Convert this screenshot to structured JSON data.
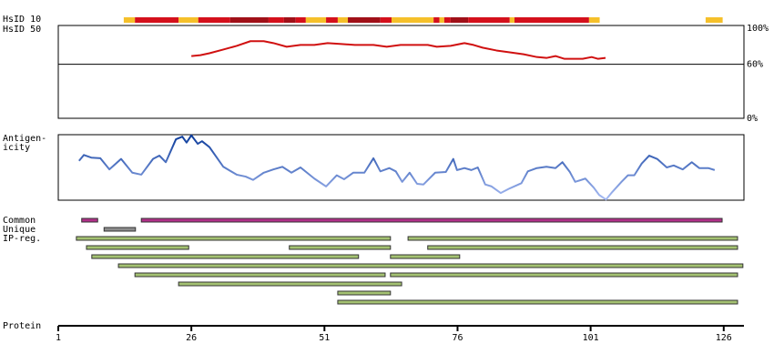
{
  "chart_data": {
    "type": "feature-map",
    "x_label": "Protein",
    "xlim": [
      1,
      129.8
    ],
    "xticks": [
      1,
      26,
      51,
      76,
      101,
      126
    ],
    "hsid10": {
      "label": "HsID 10",
      "segments": [
        {
          "start": 13.3,
          "end": 15.4,
          "color": "#f5c02a"
        },
        {
          "start": 15.4,
          "end": 23.6,
          "color": "#d4101c"
        },
        {
          "start": 23.6,
          "end": 27.3,
          "color": "#f5c02a"
        },
        {
          "start": 27.3,
          "end": 33.3,
          "color": "#d4101c"
        },
        {
          "start": 33.3,
          "end": 40.5,
          "color": "#a01018"
        },
        {
          "start": 40.5,
          "end": 43.4,
          "color": "#d4101c"
        },
        {
          "start": 43.4,
          "end": 45.6,
          "color": "#a01018"
        },
        {
          "start": 45.6,
          "end": 47.5,
          "color": "#d4101c"
        },
        {
          "start": 47.5,
          "end": 51.3,
          "color": "#f5c02a"
        },
        {
          "start": 51.3,
          "end": 53.5,
          "color": "#d4101c"
        },
        {
          "start": 53.5,
          "end": 55.4,
          "color": "#f5c02a"
        },
        {
          "start": 55.4,
          "end": 61.5,
          "color": "#a01018"
        },
        {
          "start": 61.5,
          "end": 63.6,
          "color": "#d4101c"
        },
        {
          "start": 63.6,
          "end": 71.5,
          "color": "#f5c02a"
        },
        {
          "start": 71.5,
          "end": 72.6,
          "color": "#d4101c"
        },
        {
          "start": 72.6,
          "end": 73.5,
          "color": "#f5c02a"
        },
        {
          "start": 73.5,
          "end": 74.7,
          "color": "#d4101c"
        },
        {
          "start": 74.7,
          "end": 78.0,
          "color": "#a01018"
        },
        {
          "start": 78.0,
          "end": 85.8,
          "color": "#d4101c"
        },
        {
          "start": 85.8,
          "end": 86.7,
          "color": "#f5c02a"
        },
        {
          "start": 86.7,
          "end": 100.7,
          "color": "#d4101c"
        },
        {
          "start": 100.7,
          "end": 102.7,
          "color": "#f5c02a"
        },
        {
          "start": 122.6,
          "end": 125.8,
          "color": "#f5c02a"
        }
      ]
    },
    "hsid50": {
      "label": "HsID 50",
      "type": "line",
      "color": "#d01010",
      "grid": true,
      "ylim": [
        0,
        100
      ],
      "yticks": [
        {
          "value": 0,
          "label": "0%"
        },
        {
          "value": 60,
          "label": "60%"
        },
        {
          "value": 100,
          "label": "100%"
        }
      ],
      "x": [
        26.0,
        27.7,
        29.4,
        32.0,
        34.5,
        37.1,
        39.6,
        41.4,
        43.9,
        46.5,
        49.1,
        51.6,
        54.2,
        56.7,
        60.2,
        62.7,
        65.3,
        70.4,
        72.1,
        74.7,
        77.3,
        79.0,
        80.7,
        83.3,
        85.8,
        88.4,
        90.9,
        92.7,
        94.4,
        96.1,
        99.5,
        101.2,
        102.4,
        103.8
      ],
      "values": [
        69.1,
        70.1,
        72.2,
        76.3,
        80.4,
        85.6,
        85.6,
        83.5,
        79.4,
        81.4,
        81.4,
        83.5,
        82.5,
        81.4,
        81.4,
        79.4,
        81.4,
        81.4,
        79.4,
        80.4,
        83.5,
        81.4,
        78.4,
        75.3,
        73.2,
        71.1,
        68.0,
        67.0,
        69.1,
        66.0,
        66.0,
        68.0,
        66.0,
        67.0
      ]
    },
    "antigenicity": {
      "label": [
        "Antigen-",
        "icity"
      ],
      "type": "line",
      "color_high": "#0a3a9a",
      "color_low": "#a8bcf4",
      "ylim": [
        0,
        1
      ],
      "x": [
        4.9,
        5.8,
        7.2,
        8.9,
        10.6,
        12.8,
        14.9,
        16.6,
        18.8,
        20.0,
        21.2,
        23.1,
        24.3,
        25.1,
        26.0,
        27.2,
        28.0,
        29.4,
        32.0,
        34.5,
        36.2,
        37.6,
        39.6,
        41.4,
        43.1,
        44.8,
        46.5,
        49.1,
        51.3,
        53.3,
        54.7,
        56.4,
        58.5,
        60.2,
        61.5,
        63.2,
        64.4,
        65.6,
        67.0,
        68.4,
        69.6,
        71.8,
        73.8,
        75.2,
        75.9,
        77.3,
        78.6,
        79.8,
        81.2,
        82.4,
        84.1,
        85.8,
        88.0,
        89.2,
        90.9,
        92.7,
        94.4,
        95.7,
        97.1,
        98.1,
        100.0,
        101.6,
        102.6,
        103.9,
        104.9,
        106.8,
        108.0,
        109.2,
        110.6,
        112.0,
        113.5,
        115.3,
        116.6,
        118.3,
        120.0,
        121.4,
        123.1,
        124.3
      ],
      "values": [
        0.6,
        0.69,
        0.65,
        0.64,
        0.47,
        0.63,
        0.42,
        0.39,
        0.63,
        0.68,
        0.58,
        0.93,
        0.97,
        0.88,
        0.99,
        0.86,
        0.9,
        0.81,
        0.51,
        0.39,
        0.36,
        0.31,
        0.42,
        0.47,
        0.51,
        0.42,
        0.5,
        0.33,
        0.21,
        0.38,
        0.32,
        0.42,
        0.42,
        0.64,
        0.44,
        0.49,
        0.44,
        0.28,
        0.42,
        0.25,
        0.24,
        0.42,
        0.43,
        0.63,
        0.46,
        0.49,
        0.46,
        0.5,
        0.24,
        0.21,
        0.11,
        0.18,
        0.26,
        0.44,
        0.49,
        0.51,
        0.49,
        0.58,
        0.43,
        0.28,
        0.33,
        0.19,
        0.08,
        0.01,
        0.11,
        0.28,
        0.38,
        0.38,
        0.56,
        0.68,
        0.63,
        0.5,
        0.53,
        0.47,
        0.58,
        0.49,
        0.49,
        0.46
      ]
    },
    "features": [
      {
        "label": "Common",
        "color": "#b03088",
        "rows": [
          [
            {
              "start": 5.4,
              "end": 8.4
            },
            {
              "start": 16.6,
              "end": 125.7
            }
          ]
        ]
      },
      {
        "label": "Unique",
        "color": "#8c8c8c",
        "rows": [
          [
            {
              "start": 9.6,
              "end": 15.5
            }
          ]
        ]
      },
      {
        "label": "IP-reg.",
        "color": "#a4c272",
        "rows": [
          [
            {
              "start": 4.4,
              "end": 63.4
            },
            {
              "start": 66.7,
              "end": 128.6
            }
          ],
          [
            {
              "start": 6.3,
              "end": 25.5
            },
            {
              "start": 44.4,
              "end": 63.4
            },
            {
              "start": 70.4,
              "end": 128.6
            }
          ],
          [
            {
              "start": 7.3,
              "end": 57.4
            },
            {
              "start": 63.4,
              "end": 76.4
            }
          ],
          [
            {
              "start": 12.3,
              "end": 129.6
            }
          ],
          [
            {
              "start": 15.4,
              "end": 62.4
            },
            {
              "start": 63.4,
              "end": 128.6
            }
          ],
          [
            {
              "start": 23.6,
              "end": 65.5
            }
          ],
          [
            {
              "start": 53.5,
              "end": 63.4
            }
          ],
          [
            {
              "start": 53.5,
              "end": 128.6
            }
          ]
        ]
      }
    ]
  }
}
